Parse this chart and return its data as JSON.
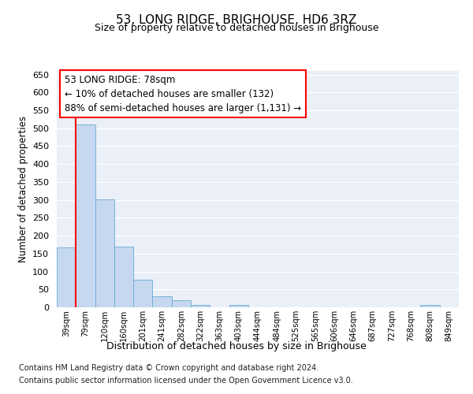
{
  "title": "53, LONG RIDGE, BRIGHOUSE, HD6 3RZ",
  "subtitle": "Size of property relative to detached houses in Brighouse",
  "xlabel": "Distribution of detached houses by size in Brighouse",
  "ylabel": "Number of detached properties",
  "bar_labels": [
    "39sqm",
    "79sqm",
    "120sqm",
    "160sqm",
    "201sqm",
    "241sqm",
    "282sqm",
    "322sqm",
    "363sqm",
    "403sqm",
    "444sqm",
    "484sqm",
    "525sqm",
    "565sqm",
    "606sqm",
    "646sqm",
    "687sqm",
    "727sqm",
    "768sqm",
    "808sqm",
    "849sqm"
  ],
  "bar_values": [
    168,
    510,
    302,
    170,
    78,
    31,
    20,
    7,
    0,
    7,
    0,
    0,
    0,
    0,
    0,
    0,
    0,
    0,
    0,
    7,
    0
  ],
  "bar_color": "#c5d8f0",
  "bar_edge_color": "#6aaad4",
  "bg_color": "#eaeff8",
  "grid_color": "#ffffff",
  "annotation_text_line1": "53 LONG RIDGE: 78sqm",
  "annotation_text_line2": "← 10% of detached houses are smaller (132)",
  "annotation_text_line3": "88% of semi-detached houses are larger (1,131) →",
  "property_line_index": 1,
  "ylim_max": 660,
  "yticks": [
    0,
    50,
    100,
    150,
    200,
    250,
    300,
    350,
    400,
    450,
    500,
    550,
    600,
    650
  ],
  "footer_line1": "Contains HM Land Registry data © Crown copyright and database right 2024.",
  "footer_line2": "Contains public sector information licensed under the Open Government Licence v3.0."
}
